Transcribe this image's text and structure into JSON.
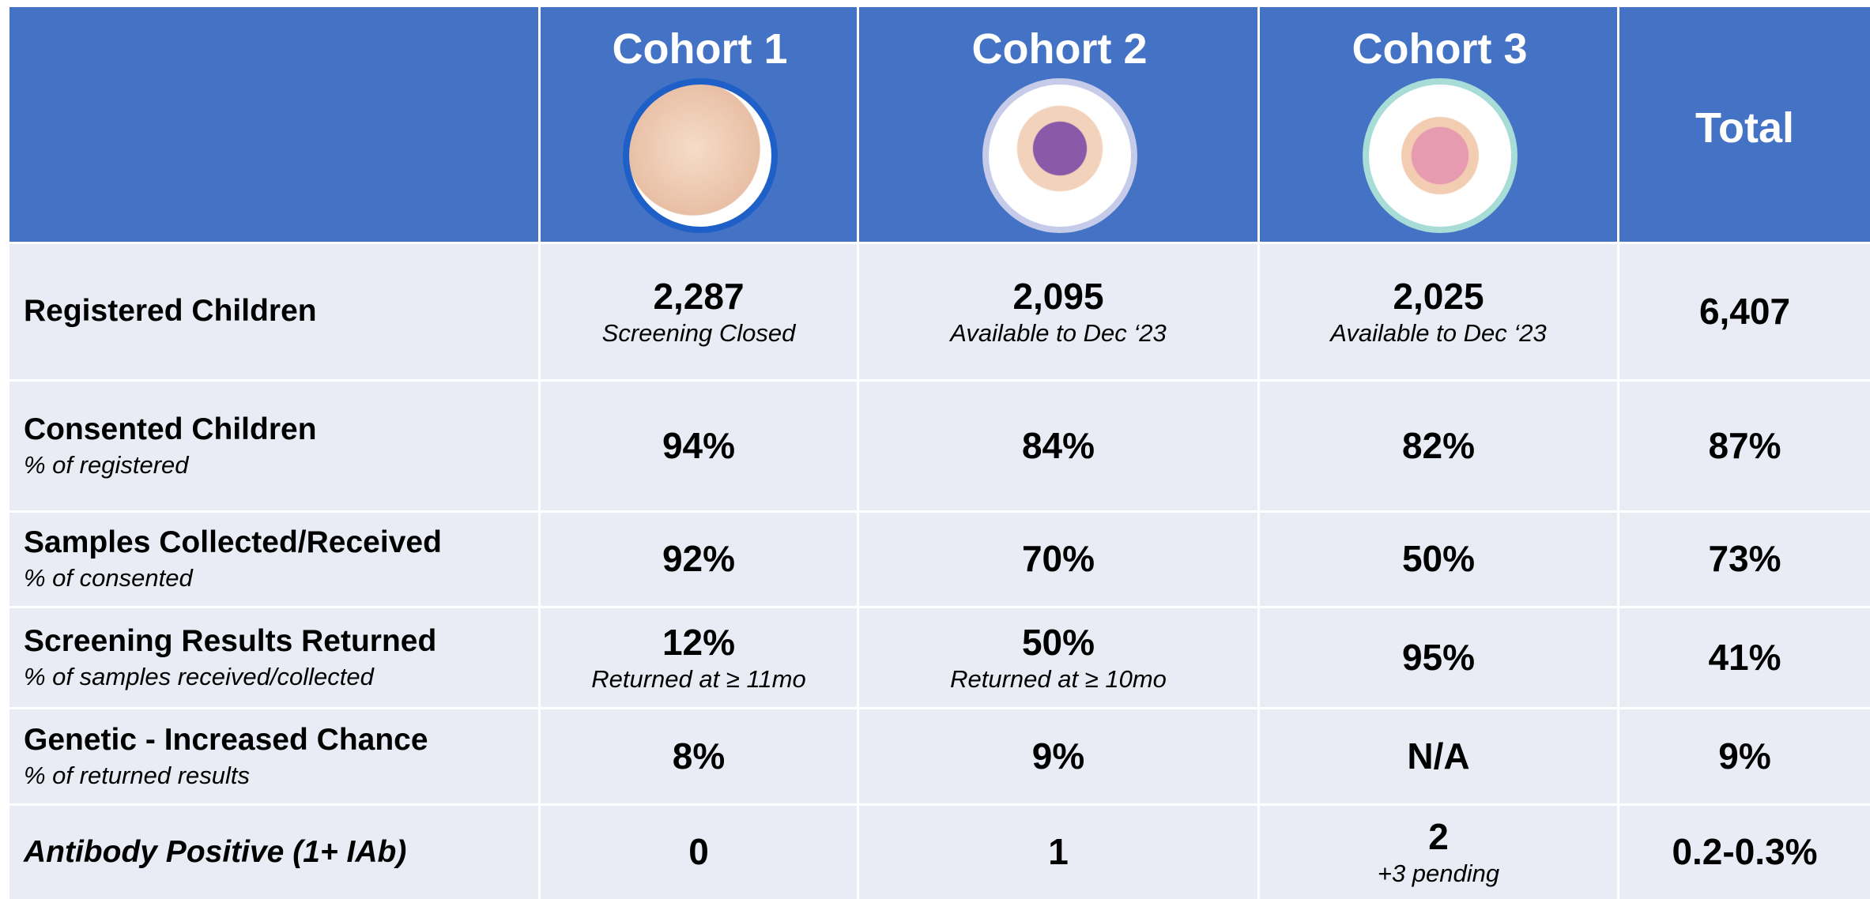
{
  "header": {
    "columns": [
      "Cohort 1",
      "Cohort 2",
      "Cohort 3",
      "Total"
    ]
  },
  "table": {
    "rows": [
      {
        "label": "Registered Children",
        "cells": [
          {
            "value": "2,287",
            "note": "Screening Closed"
          },
          {
            "value": "2,095",
            "note": "Available to Dec ‘23"
          },
          {
            "value": "2,025",
            "note": "Available to Dec ‘23"
          },
          {
            "value": "6,407"
          }
        ]
      },
      {
        "label": "Consented Children",
        "sublabel": "% of registered",
        "cells": [
          {
            "value": "94%"
          },
          {
            "value": "84%"
          },
          {
            "value": "82%"
          },
          {
            "value": "87%"
          }
        ]
      },
      {
        "label": "Samples Collected/Received",
        "sublabel": "% of consented",
        "cells": [
          {
            "value": "92%"
          },
          {
            "value": "70%"
          },
          {
            "value": "50%"
          },
          {
            "value": "73%"
          }
        ]
      },
      {
        "label": "Screening Results Returned",
        "sublabel": "% of samples received/collected",
        "cells": [
          {
            "value": "12%",
            "note": "Returned at ≥ 11mo"
          },
          {
            "value": "50%",
            "note": "Returned at ≥ 10mo"
          },
          {
            "value": "95%"
          },
          {
            "value": "41%"
          }
        ]
      },
      {
        "label": "Genetic - Increased Chance",
        "sublabel": "% of returned results",
        "cells": [
          {
            "value": "8%"
          },
          {
            "value": "9%"
          },
          {
            "value": "N/A"
          },
          {
            "value": "9%"
          }
        ]
      },
      {
        "label": "Antibody Positive (1+ IAb)",
        "italic": true,
        "cells": [
          {
            "value": "0"
          },
          {
            "value": "1"
          },
          {
            "value": "2",
            "note": "+3 pending"
          },
          {
            "value": "0.2-0.3%"
          }
        ]
      }
    ]
  }
}
